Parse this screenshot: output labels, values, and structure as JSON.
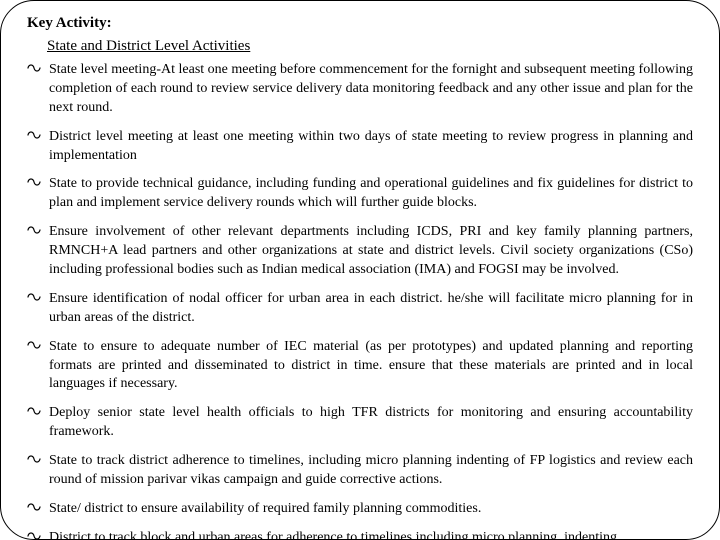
{
  "heading": "Key Activity:",
  "subheading": "State and District Level Activities",
  "bullet_glyph": "෴",
  "items": [
    "State level meeting-At least one meeting before commencement for the fornight and subsequent meeting following completion of each round to review service delivery data monitoring feedback and any other issue and plan for the next round.",
    "District level meeting at least one meeting within two days of state meeting to review progress in planning and implementation",
    "State to provide technical guidance, including funding and operational guidelines and fix guidelines for district to plan and implement service delivery rounds which will further guide blocks.",
    "Ensure involvement of other relevant departments including ICDS, PRI and key family planning partners, RMNCH+A lead partners and other organizations at state and district levels. Civil society organizations (CSo) including professional bodies such as Indian medical association (IMA) and FOGSI may be involved.",
    "Ensure identification of nodal officer for urban area in each district. he/she will facilitate micro planning for in urban areas of the district.",
    "State to ensure to adequate number of IEC material (as per prototypes) and updated planning  and reporting formats are printed and disseminated to district in time. ensure that these materials are printed and in local languages if necessary.",
    "Deploy senior state level health officials to high TFR districts for monitoring and ensuring accountability framework.",
    "State to track district adherence to timelines, including micro planning indenting of FP logistics and review each round of mission parivar vikas campaign and guide corrective actions.",
    "State/ district to ensure availability of required family planning commodities.",
    "District to track block and urban areas for adherence to timelines including micro planning, indenting"
  ]
}
